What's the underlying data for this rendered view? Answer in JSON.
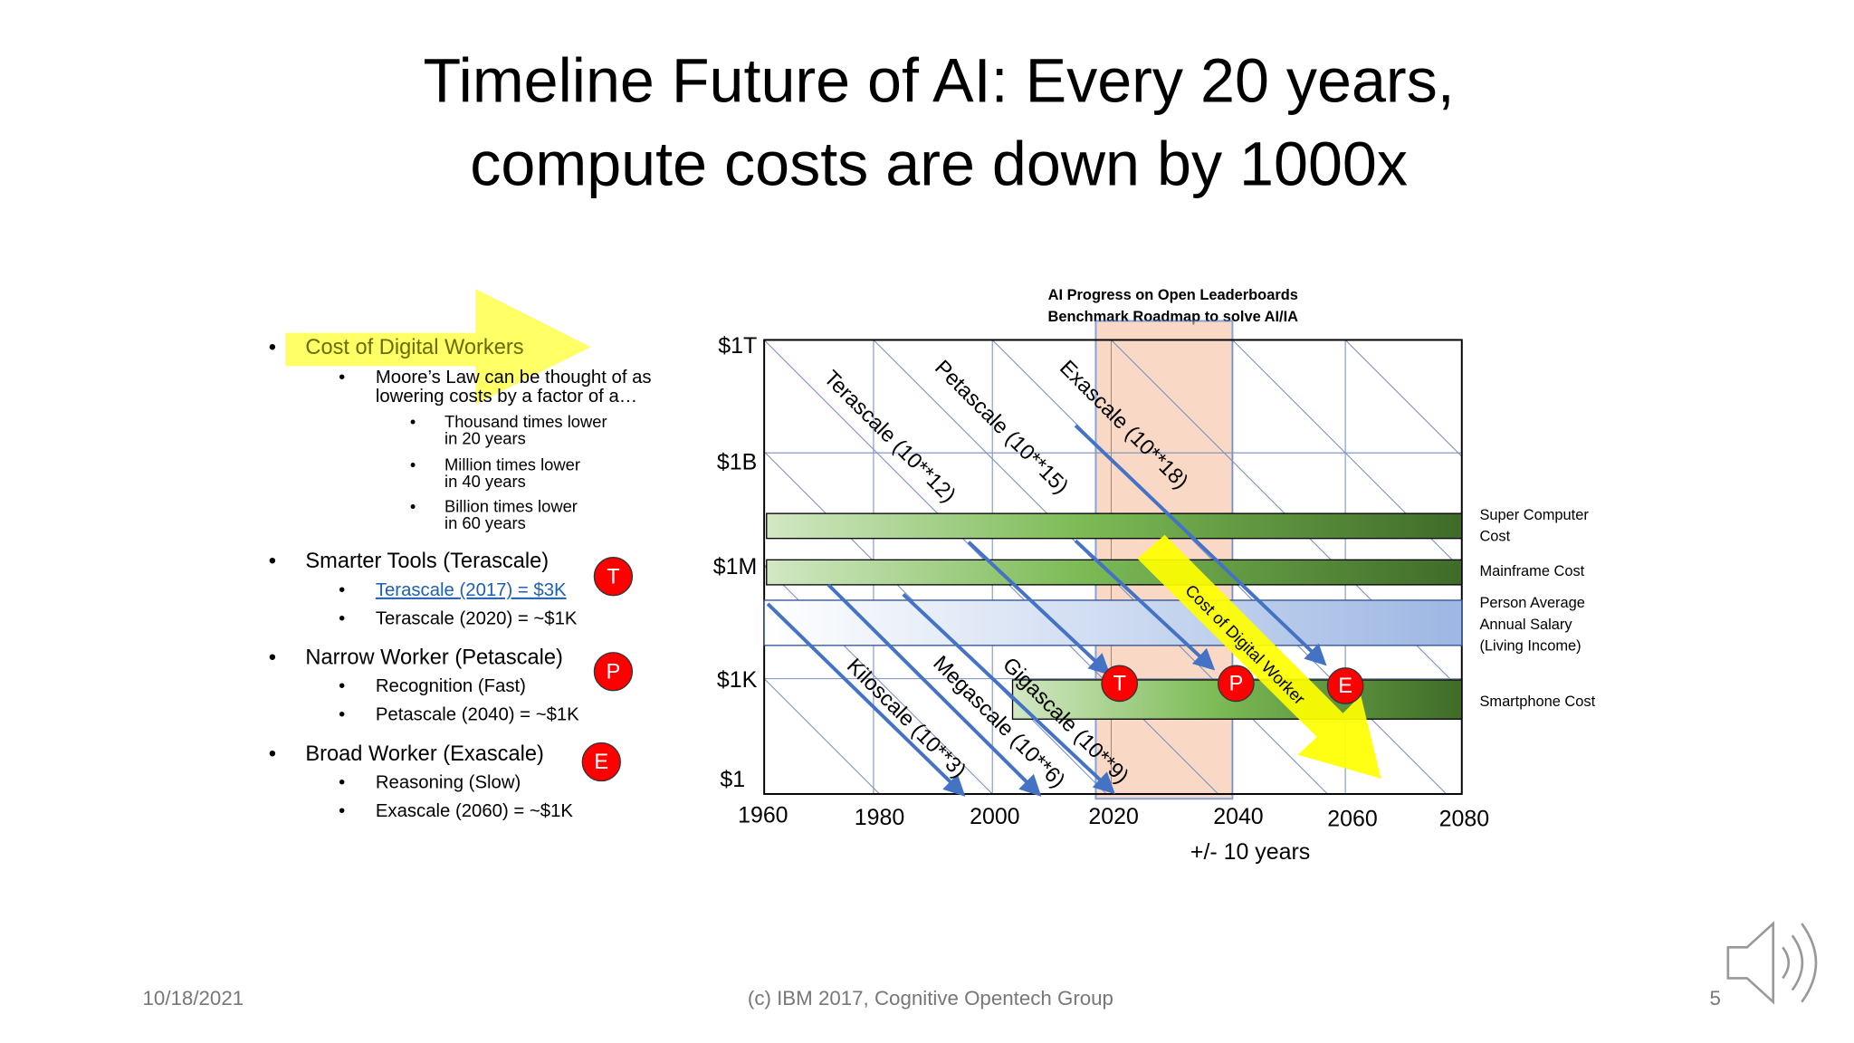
{
  "title": [
    "Timeline Future of AI: Every 20 years,",
    "compute costs are down by 1000x"
  ],
  "outline": [
    {
      "text": "Cost of Digital Workers",
      "items": [
        {
          "lines": [
            "Moore’s Law can be thought of as",
            "lowering costs by a factor of a…"
          ],
          "items": [
            [
              "Thousand times lower",
              "in 20 years"
            ],
            [
              "Million times lower",
              "in 40 years"
            ],
            [
              "Billion times lower",
              "in 60 years"
            ]
          ]
        }
      ]
    },
    {
      "text": "Smarter Tools (Terascale)",
      "badge": "T",
      "items": [
        "Terascale (2017) = $3K",
        "Terascale (2020) = ~$1K"
      ]
    },
    {
      "text": "Narrow Worker (Petascale)",
      "badge": "P",
      "items": [
        "Recognition (Fast)",
        "Petascale (2040) =  ~$1K"
      ]
    },
    {
      "text": "Broad Worker (Exascale)",
      "badge": "E",
      "items": [
        "Reasoning (Slow)",
        "Exascale (2060) = ~$1K"
      ]
    }
  ],
  "chart": {
    "header": [
      "AI Progress on Open Leaderboards",
      "Benchmark Roadmap to solve AI/IA"
    ],
    "y_labels": [
      "$1T",
      "$1B",
      "$1M",
      "$1K",
      "$1"
    ],
    "x_labels": [
      "1960",
      "1980",
      "2000",
      "2020",
      "2040",
      "2060",
      "2080"
    ],
    "x_caption": "+/- 10 years",
    "scales": [
      "Terascale (10**12)",
      "Petascale (10**15)",
      "Exascale (10**18)",
      "Kiloscale (10**3)",
      "Megascale (10**6)",
      "Gigascale (10**9)"
    ],
    "trend": "Cost of Digital Worker",
    "markers": [
      "T",
      "P",
      "E"
    ],
    "bands": [
      [
        "Super Computer",
        "Cost"
      ],
      [
        "Mainframe Cost"
      ],
      [
        "Person Average",
        "Annual Salary",
        "(Living Income)"
      ],
      [
        "Smartphone Cost"
      ]
    ]
  },
  "footer": {
    "date": "10/18/2021",
    "credit": "(c) IBM 2017, Cognitive Opentech Group",
    "page": "5"
  }
}
